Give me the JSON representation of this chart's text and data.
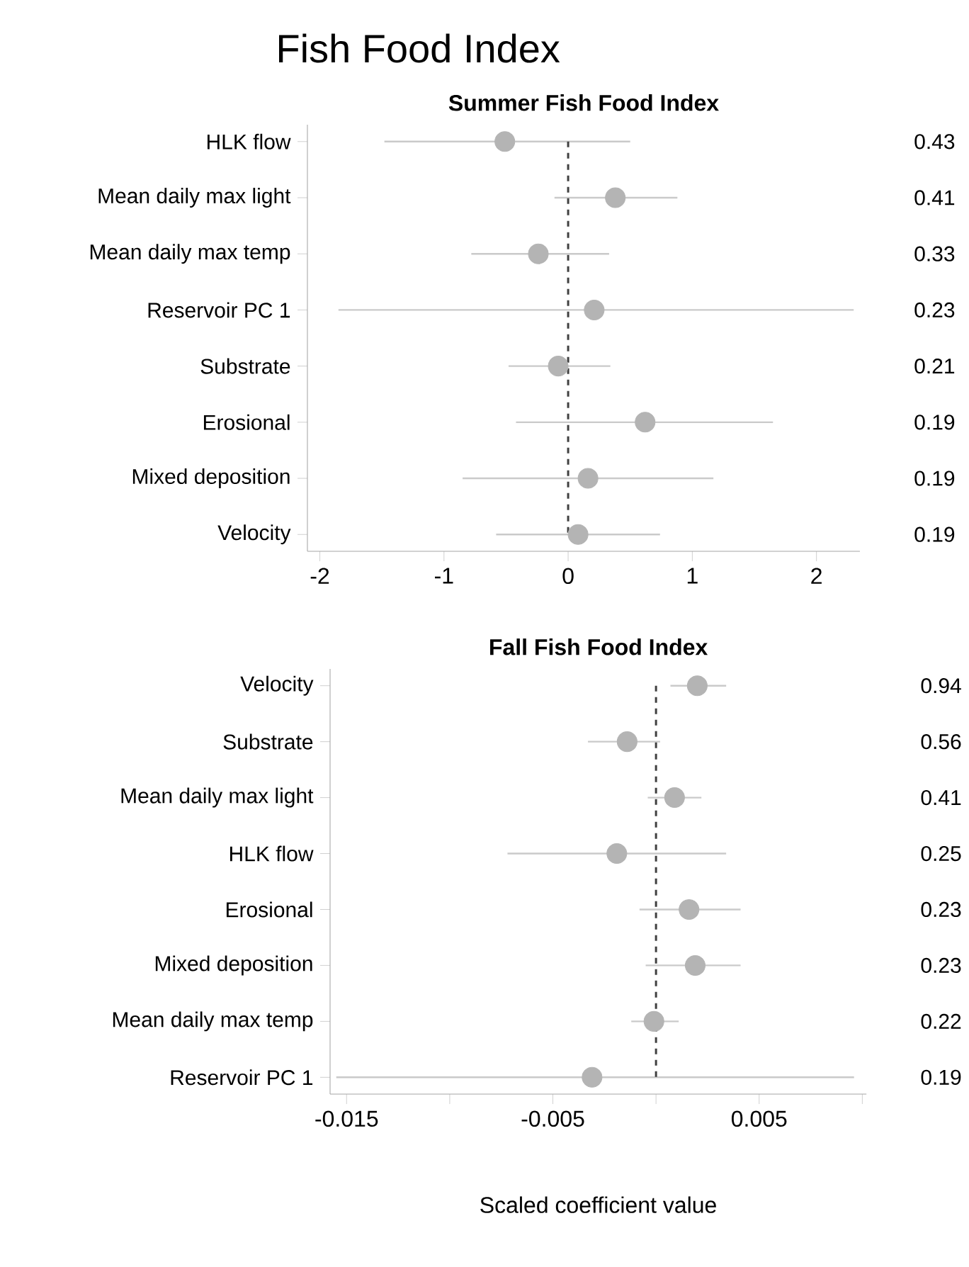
{
  "chart_data": [
    {
      "type": "scatter",
      "orientation": "horizontal",
      "title": "Fish Food Index",
      "subtitle": "Summer Fish Food Index",
      "marker": "circle",
      "color": "#b4b4b4",
      "categories": [
        "HLK flow",
        "Mean daily max light",
        "Mean daily max temp",
        "Reservoir PC 1",
        "Substrate",
        "Erosional",
        "Mixed deposition",
        "Velocity"
      ],
      "values": [
        -0.51,
        0.38,
        -0.24,
        0.21,
        -0.08,
        0.62,
        0.16,
        0.08
      ],
      "errors": [
        [
          -1.48,
          0.5
        ],
        [
          -0.11,
          0.88
        ],
        [
          -0.78,
          0.33
        ],
        [
          -1.85,
          2.3
        ],
        [
          -0.48,
          0.34
        ],
        [
          -0.42,
          1.65
        ],
        [
          -0.85,
          1.17
        ],
        [
          -0.58,
          0.74
        ]
      ],
      "y2_categories": [
        "0.43",
        "0.41",
        "0.33",
        "0.23",
        "0.21",
        "0.19",
        "0.19",
        "0.19"
      ],
      "xlim": [
        -2.1,
        2.35
      ],
      "xticks": [
        -2,
        -1,
        0,
        1,
        2
      ],
      "ref_lines": [
        {
          "axis": "x",
          "value": 0,
          "color": "#404040",
          "line_style": "dashed"
        }
      ]
    },
    {
      "type": "scatter",
      "orientation": "horizontal",
      "title": "Fall Fish Food Index",
      "xlabel": "Scaled coefficient value",
      "marker": "circle",
      "color": "#b4b4b4",
      "categories": [
        "Velocity",
        "Substrate",
        "Mean daily max light",
        "HLK flow",
        "Erosional",
        "Mixed deposition",
        "Mean daily max temp",
        "Reservoir PC 1"
      ],
      "values": [
        0.002,
        -0.0014,
        0.0009,
        -0.0019,
        0.0016,
        0.0019,
        -0.0001,
        -0.0031
      ],
      "errors": [
        [
          0.0007,
          0.0034
        ],
        [
          -0.0033,
          0.0002
        ],
        [
          -0.0004,
          0.0022
        ],
        [
          -0.0072,
          0.0034
        ],
        [
          -0.0008,
          0.0041
        ],
        [
          -0.0005,
          0.0041
        ],
        [
          -0.0012,
          0.0011
        ],
        [
          -0.0155,
          0.0096
        ]
      ],
      "y2_categories": [
        "0.94",
        "0.56",
        "0.41",
        "0.25",
        "0.23",
        "0.23",
        "0.22",
        "0.19"
      ],
      "xlim": [
        -0.0158,
        0.0102
      ],
      "xticks": [
        -0.015,
        {
          "value": -0.01,
          "label": null
        },
        -0.005,
        {
          "value": 0,
          "label": null
        },
        0.005,
        {
          "value": 0.01,
          "label": null
        }
      ],
      "ref_lines": [
        {
          "axis": "x",
          "value": 0,
          "color": "#404040",
          "line_style": "dashed"
        }
      ]
    }
  ]
}
